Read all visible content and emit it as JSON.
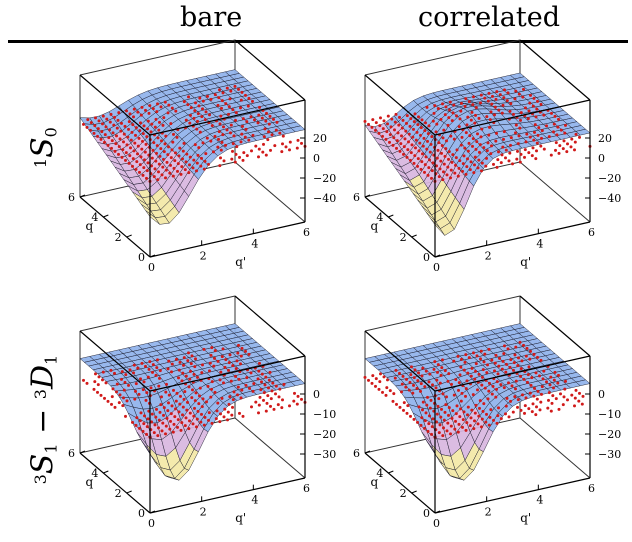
{
  "column_headers": [
    "bare",
    "correlated"
  ],
  "row_labels": [
    {
      "pre": "1",
      "letter": "S",
      "sub": "0"
    },
    {
      "pre1": "3",
      "letter1": "S",
      "sub1": "1",
      "dash": " − ",
      "pre2": "3",
      "letter2": "D",
      "sub2": "1"
    }
  ],
  "axis_labels": {
    "q": "q",
    "qprime": "q'"
  },
  "q_ticks": [
    "0",
    "2",
    "4",
    "6"
  ],
  "qprime_ticks": [
    "0",
    "2",
    "4",
    "6"
  ],
  "panels": [
    {
      "name": "panel-1S0-bare",
      "z_ticks": [
        "20",
        "0",
        "−20",
        "−40"
      ]
    },
    {
      "name": "panel-1S0-correlated",
      "z_ticks": [
        "20",
        "0",
        "−20",
        "−40"
      ]
    },
    {
      "name": "panel-3S1-bare",
      "z_ticks": [
        "0",
        "−10",
        "−20",
        "−30"
      ]
    },
    {
      "name": "panel-3S1-correlated",
      "z_ticks": [
        "0",
        "−10",
        "−20",
        "−30"
      ]
    }
  ],
  "colors": {
    "dots": "#d11a1a",
    "surface_top": "#8fb2ec",
    "surface_low": "#d8b6df",
    "surface_well": "#f3e8a6"
  }
}
